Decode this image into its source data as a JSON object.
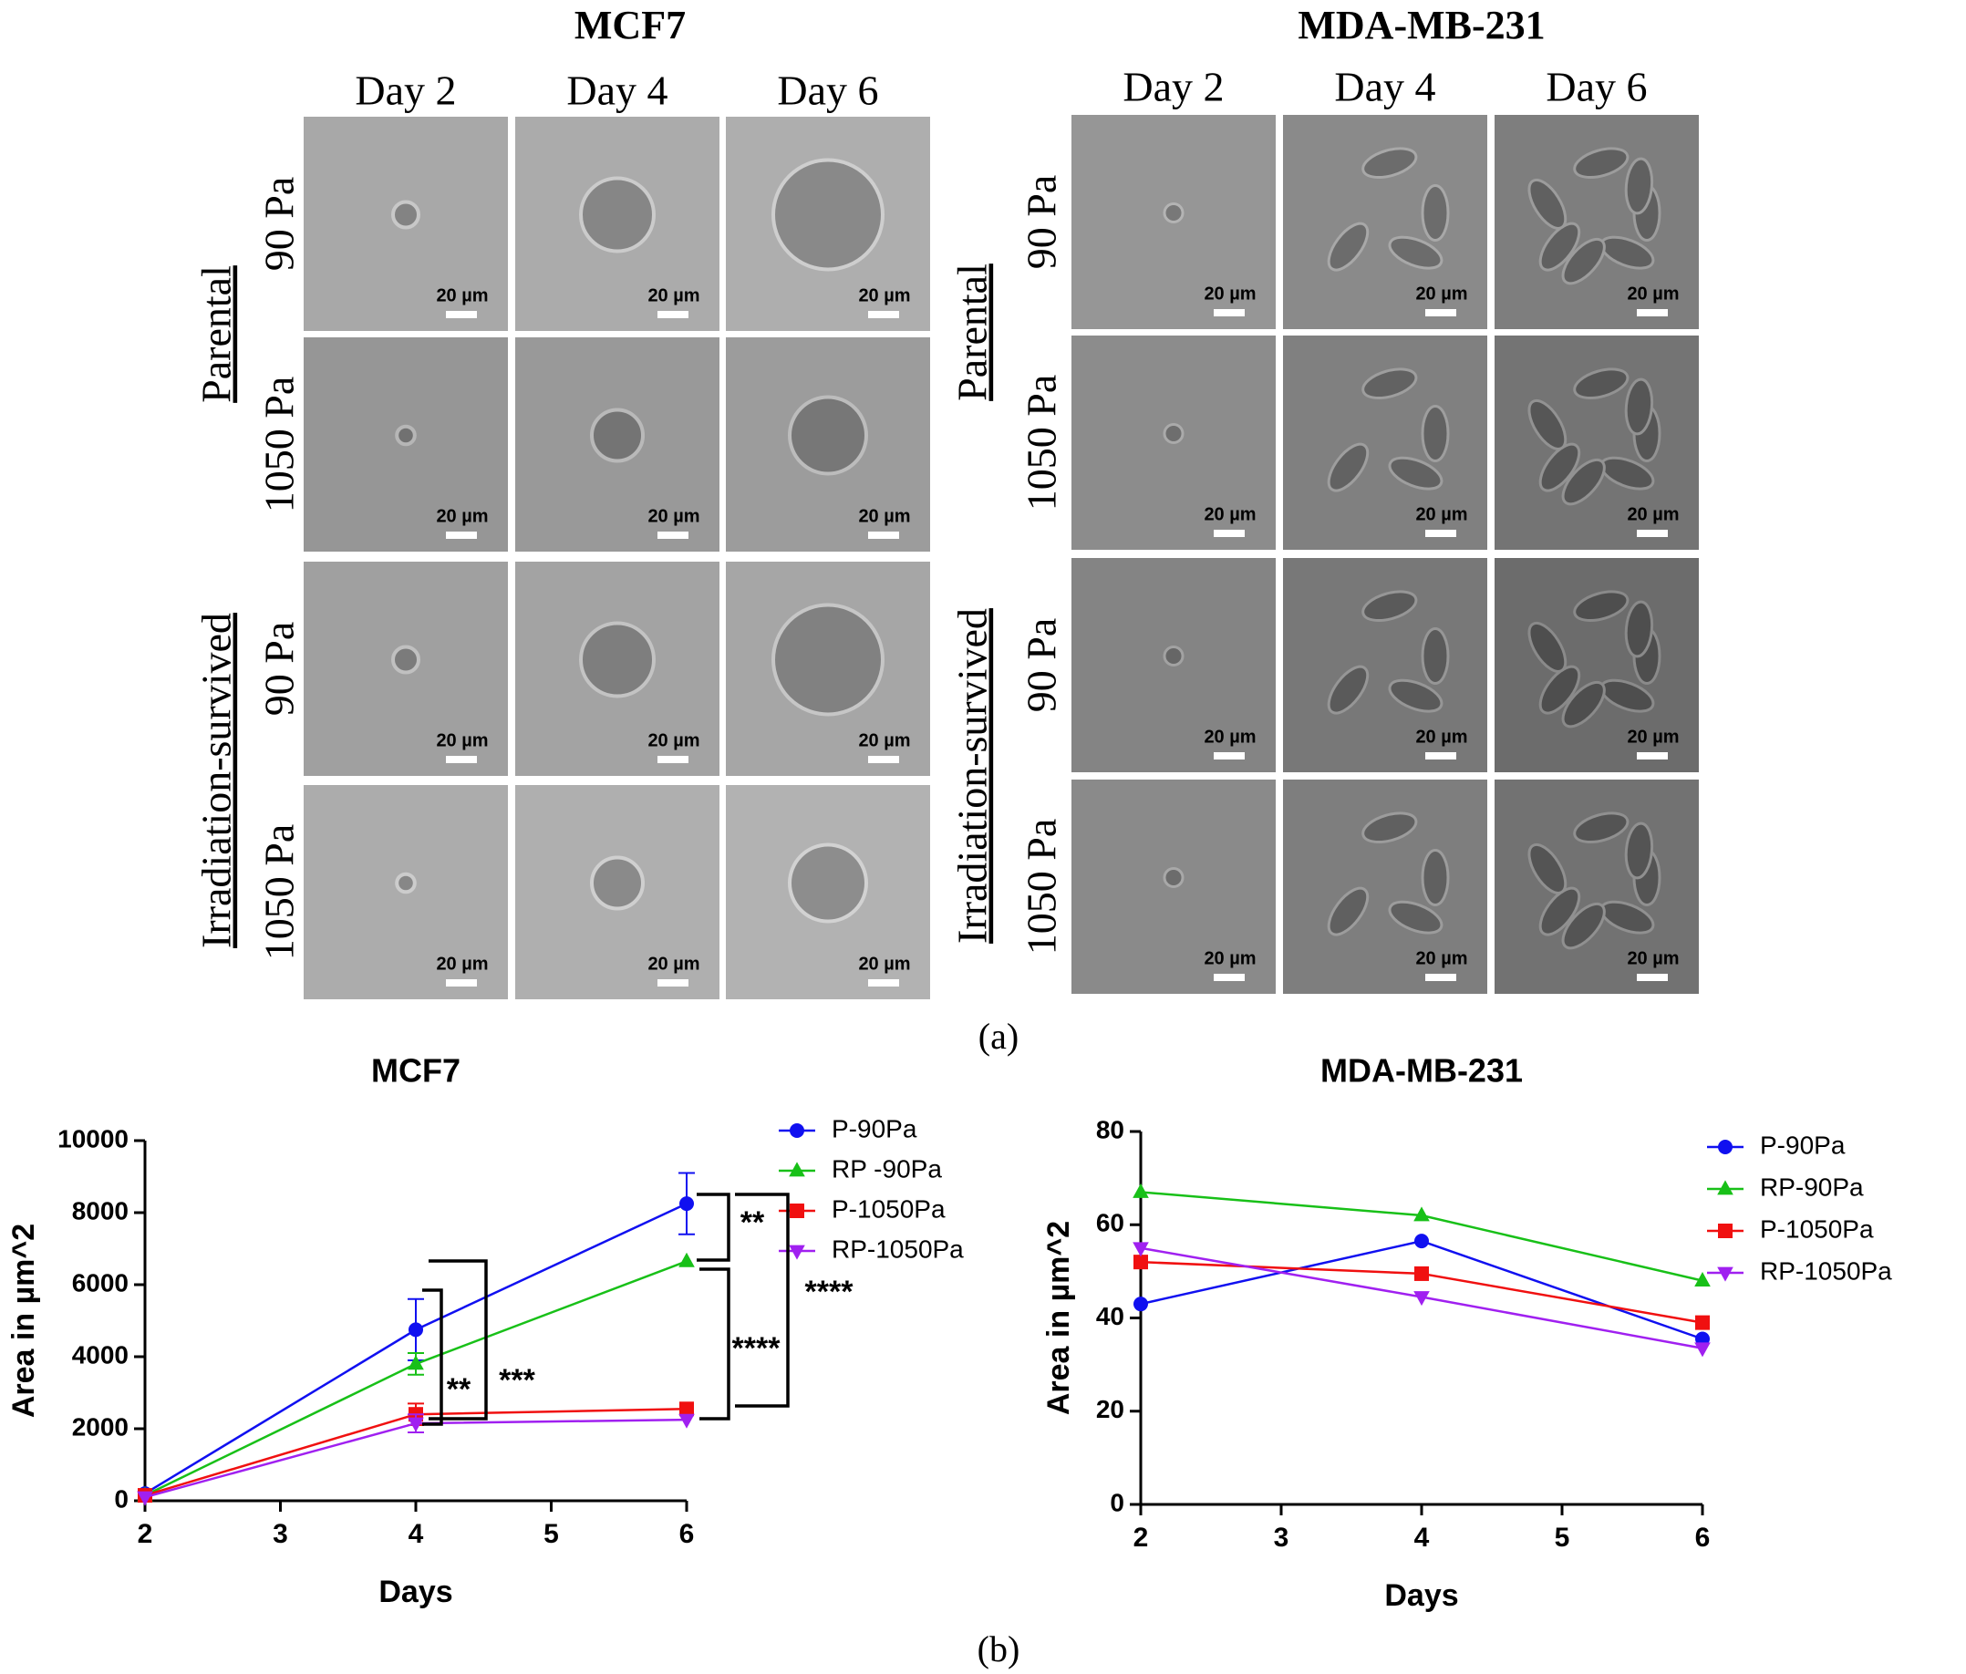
{
  "panel_a": {
    "title_left": "MCF7",
    "title_right": "MDA-MB-231",
    "days": [
      "Day 2",
      "Day 4",
      "Day 6"
    ],
    "stiffness": [
      "90 Pa",
      "1050 Pa"
    ],
    "groups": [
      "Parental",
      "Irradiation-survived"
    ],
    "scale_bar": "20 µm",
    "caption": "(a)"
  },
  "panel_b_caption": "(b)",
  "chart_data": [
    {
      "type": "line",
      "title": "MCF7",
      "x": [
        2,
        4,
        6
      ],
      "xlim": [
        2,
        6
      ],
      "xticks": [
        2,
        3,
        4,
        5,
        6
      ],
      "ylim": [
        0,
        10000
      ],
      "yticks": [
        0,
        2000,
        4000,
        6000,
        8000,
        10000
      ],
      "xlabel": "Days",
      "ylabel": "Area in µm^2",
      "series": [
        {
          "name": "P-90Pa",
          "color": "#1010f0",
          "marker": "circle",
          "values": [
            200,
            4750,
            8250
          ],
          "errors": [
            null,
            850,
            850
          ]
        },
        {
          "name": "RP -90Pa",
          "color": "#18c018",
          "marker": "triangle-up",
          "values": [
            150,
            3800,
            6650
          ],
          "errors": [
            null,
            300,
            null
          ]
        },
        {
          "name": "P-1050Pa",
          "color": "#f01010",
          "marker": "square",
          "values": [
            150,
            2400,
            2550
          ],
          "errors": [
            null,
            300,
            null
          ]
        },
        {
          "name": "RP-1050Pa",
          "color": "#a020f0",
          "marker": "triangle-down",
          "values": [
            100,
            2150,
            2250
          ],
          "errors": [
            null,
            250,
            null
          ]
        }
      ],
      "annotations": [
        "**",
        "****",
        "****",
        "**",
        "***"
      ]
    },
    {
      "type": "line",
      "title": "MDA-MB-231",
      "x": [
        2,
        4,
        6
      ],
      "xlim": [
        2,
        6
      ],
      "xticks": [
        2,
        3,
        4,
        5,
        6
      ],
      "ylim": [
        0,
        80
      ],
      "yticks": [
        0,
        20,
        40,
        60,
        80
      ],
      "xlabel": "Days",
      "ylabel": "Area in µm^2",
      "series": [
        {
          "name": "P-90Pa",
          "color": "#1010f0",
          "marker": "circle",
          "values": [
            43,
            56.5,
            35.5
          ]
        },
        {
          "name": "RP-90Pa",
          "color": "#18c018",
          "marker": "triangle-up",
          "values": [
            67,
            62,
            48
          ]
        },
        {
          "name": "P-1050Pa",
          "color": "#f01010",
          "marker": "square",
          "values": [
            52,
            49.5,
            39
          ]
        },
        {
          "name": "RP-1050Pa",
          "color": "#a020f0",
          "marker": "triangle-down",
          "values": [
            55,
            44.5,
            33.5
          ]
        }
      ]
    }
  ]
}
